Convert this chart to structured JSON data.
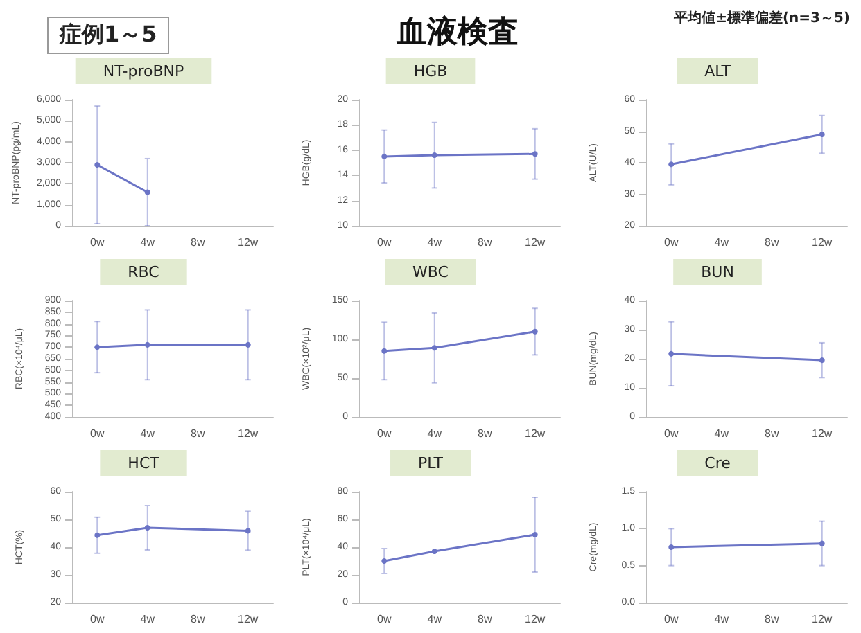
{
  "chart_data": [
    {
      "type": "other",
      "title": "血液検査",
      "annotations": [
        "症例1～5",
        "平均値±標準偏差(n=3～5)"
      ]
    },
    {
      "type": "line",
      "title": "NT-proBNP",
      "ylabel": "NT-proBNP(pg/mL)",
      "categories": [
        "0w",
        "4w",
        "8w",
        "12w"
      ],
      "values": [
        2900,
        1600,
        null,
        null
      ],
      "errors": [
        2800,
        1600,
        null,
        null
      ],
      "color": "#6b74c6",
      "marker": "circle",
      "ylim": [
        0,
        6000
      ],
      "yticks": [
        {
          "value": 0,
          "label": "0"
        },
        {
          "value": 1000,
          "label": "1,000"
        },
        {
          "value": 2000,
          "label": "2,000"
        },
        {
          "value": 3000,
          "label": "3,000"
        },
        {
          "value": 4000,
          "label": "4,000"
        },
        {
          "value": 5000,
          "label": "5,000"
        },
        {
          "value": 6000,
          "label": "6,000"
        }
      ]
    },
    {
      "type": "line",
      "title": "HGB",
      "ylabel": "HGB(g/dL)",
      "categories": [
        "0w",
        "4w",
        "8w",
        "12w"
      ],
      "values": [
        15.5,
        15.6,
        null,
        15.7
      ],
      "errors": [
        2.1,
        2.6,
        null,
        2.0
      ],
      "color": "#6b74c6",
      "marker": "circle",
      "ylim": [
        10,
        20
      ],
      "yticks": [
        10,
        12,
        14,
        16,
        18,
        20
      ]
    },
    {
      "type": "line",
      "title": "ALT",
      "ylabel": "ALT(U/L)",
      "categories": [
        "0w",
        "4w",
        "8w",
        "12w"
      ],
      "values": [
        39.5,
        null,
        null,
        49
      ],
      "errors": [
        6.5,
        null,
        null,
        6
      ],
      "color": "#6b74c6",
      "marker": "circle",
      "ylim": [
        20,
        60
      ],
      "yticks": [
        20,
        30,
        40,
        50,
        60
      ]
    },
    {
      "type": "line",
      "title": "RBC",
      "ylabel": "RBC(×10⁴/μL)",
      "categories": [
        "0w",
        "4w",
        "8w",
        "12w"
      ],
      "values": [
        700,
        710,
        null,
        710
      ],
      "errors": [
        110,
        150,
        null,
        150
      ],
      "color": "#6b74c6",
      "marker": "circle",
      "ylim": [
        400,
        900
      ],
      "yticks": [
        400,
        450,
        500,
        550,
        600,
        650,
        700,
        750,
        800,
        850,
        900
      ]
    },
    {
      "type": "line",
      "title": "WBC",
      "ylabel": "WBC(×10²/μL)",
      "categories": [
        "0w",
        "4w",
        "8w",
        "12w"
      ],
      "values": [
        85,
        89,
        null,
        110
      ],
      "errors": [
        37,
        45,
        null,
        30
      ],
      "color": "#6b74c6",
      "marker": "circle",
      "ylim": [
        0,
        150
      ],
      "yticks": [
        0,
        50,
        100,
        150
      ]
    },
    {
      "type": "line",
      "title": "BUN",
      "ylabel": "BUN(mg/dL)",
      "categories": [
        "0w",
        "4w",
        "8w",
        "12w"
      ],
      "values": [
        21.7,
        null,
        null,
        19.5
      ],
      "errors": [
        11,
        null,
        null,
        6
      ],
      "color": "#6b74c6",
      "marker": "circle",
      "ylim": [
        0,
        40
      ],
      "yticks": [
        0,
        10,
        20,
        30,
        40
      ]
    },
    {
      "type": "line",
      "title": "HCT",
      "ylabel": "HCT(%)",
      "categories": [
        "0w",
        "4w",
        "8w",
        "12w"
      ],
      "values": [
        44.3,
        47,
        null,
        45.9
      ],
      "errors": [
        6.5,
        8,
        null,
        7
      ],
      "color": "#6b74c6",
      "marker": "circle",
      "ylim": [
        20,
        60
      ],
      "yticks": [
        20,
        30,
        40,
        50,
        60
      ]
    },
    {
      "type": "line",
      "title": "PLT",
      "ylabel": "PLT(×10⁴/μL)",
      "categories": [
        "0w",
        "4w",
        "8w",
        "12w"
      ],
      "values": [
        30,
        37,
        null,
        49
      ],
      "errors": [
        9,
        null,
        null,
        27
      ],
      "color": "#6b74c6",
      "marker": "circle",
      "ylim": [
        0,
        80
      ],
      "yticks": [
        0,
        20,
        40,
        60,
        80
      ]
    },
    {
      "type": "line",
      "title": "Cre",
      "ylabel": "Cre(mg/dL)",
      "categories": [
        "0w",
        "4w",
        "8w",
        "12w"
      ],
      "values": [
        0.75,
        null,
        null,
        0.8
      ],
      "errors": [
        0.25,
        null,
        null,
        0.3
      ],
      "color": "#6b74c6",
      "marker": "circle",
      "ylim": [
        0,
        1.5
      ],
      "yticks": [
        {
          "value": 0,
          "label": "0.0"
        },
        0.5,
        {
          "value": 1,
          "label": "1.0"
        },
        1.5
      ]
    }
  ]
}
